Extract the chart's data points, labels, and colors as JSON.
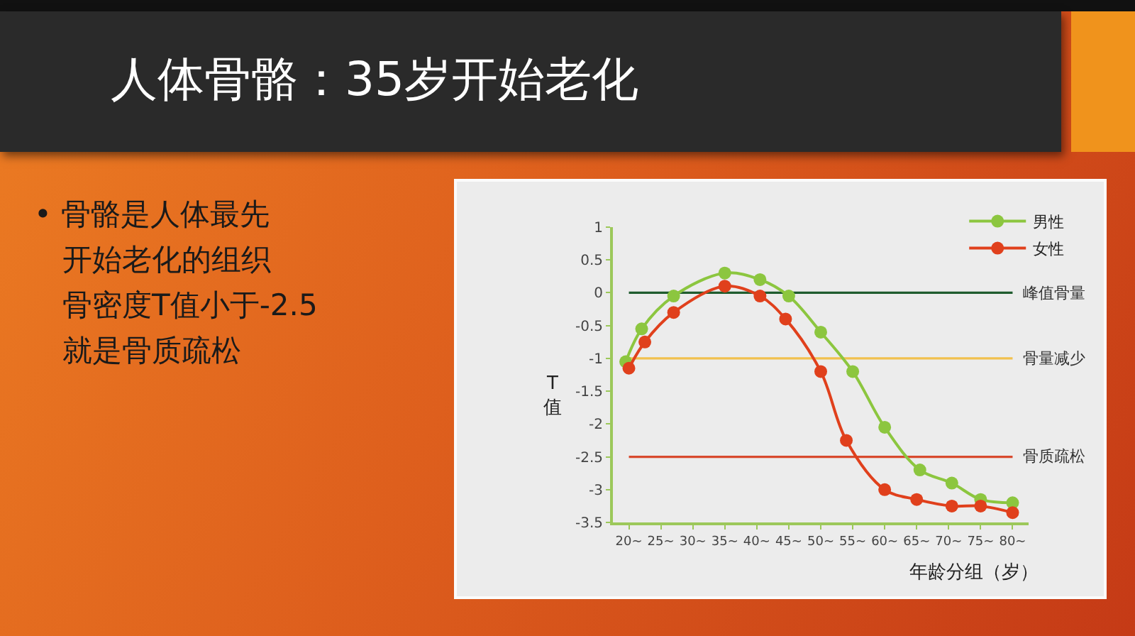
{
  "chart_data": {
    "type": "line",
    "title": "人体骨骼：35岁开始老化",
    "annotations": [
      "• 骨骼是人体最先开始老化的组织",
      "骨密度T值小于-2.5就是骨质疏松"
    ],
    "xlabel": "年龄分组（岁）",
    "ylabel": "T值",
    "series": [
      {
        "name": "男性",
        "color": "#8cc63f",
        "x": [
          19.5,
          22,
          27,
          35,
          40.5,
          45,
          50,
          55,
          60,
          65.5,
          70.5,
          75,
          80
        ],
        "values": [
          -1.05,
          -0.55,
          -0.05,
          0.3,
          0.2,
          -0.05,
          -0.6,
          -1.2,
          -2.05,
          -2.7,
          -2.9,
          -3.15,
          -3.2
        ]
      },
      {
        "name": "女性",
        "color": "#e0401c",
        "x": [
          20,
          22.5,
          27,
          35,
          40.5,
          44.5,
          50,
          54,
          60,
          65,
          70.5,
          75,
          80
        ],
        "values": [
          -1.15,
          -0.75,
          -0.3,
          0.1,
          -0.05,
          -0.4,
          -1.2,
          -2.25,
          -3.0,
          -3.15,
          -3.25,
          -3.25,
          -3.35
        ]
      }
    ],
    "xlim": [
      17.5,
      82.5
    ],
    "xticks": [
      {
        "value": 20,
        "label": "20~"
      },
      {
        "value": 25,
        "label": "25~"
      },
      {
        "value": 30,
        "label": "30~"
      },
      {
        "value": 35,
        "label": "35~"
      },
      {
        "value": 40,
        "label": "40~"
      },
      {
        "value": 45,
        "label": "45~"
      },
      {
        "value": 50,
        "label": "50~"
      },
      {
        "value": 55,
        "label": "55~"
      },
      {
        "value": 60,
        "label": "60~"
      },
      {
        "value": 65,
        "label": "65~"
      },
      {
        "value": 70,
        "label": "70~"
      },
      {
        "value": 75,
        "label": "75~"
      },
      {
        "value": 80,
        "label": "80~"
      }
    ],
    "ylim": [
      -3.5,
      1
    ],
    "yticks": [
      1,
      0.5,
      0,
      -0.5,
      -1,
      -1.5,
      -2,
      -2.5,
      -3,
      -3.5
    ],
    "ref_lines": [
      {
        "axis": "y",
        "value": 0,
        "label": "峰值骨量",
        "color": "#1f5c2e"
      },
      {
        "axis": "y",
        "value": -1,
        "label": "骨量减少",
        "color": "#f2c14e"
      },
      {
        "axis": "y",
        "value": -2.5,
        "label": "骨质疏松",
        "color": "#d84a2e"
      }
    ],
    "legend": "top right",
    "marker": "circle",
    "line_style": "solid"
  }
}
